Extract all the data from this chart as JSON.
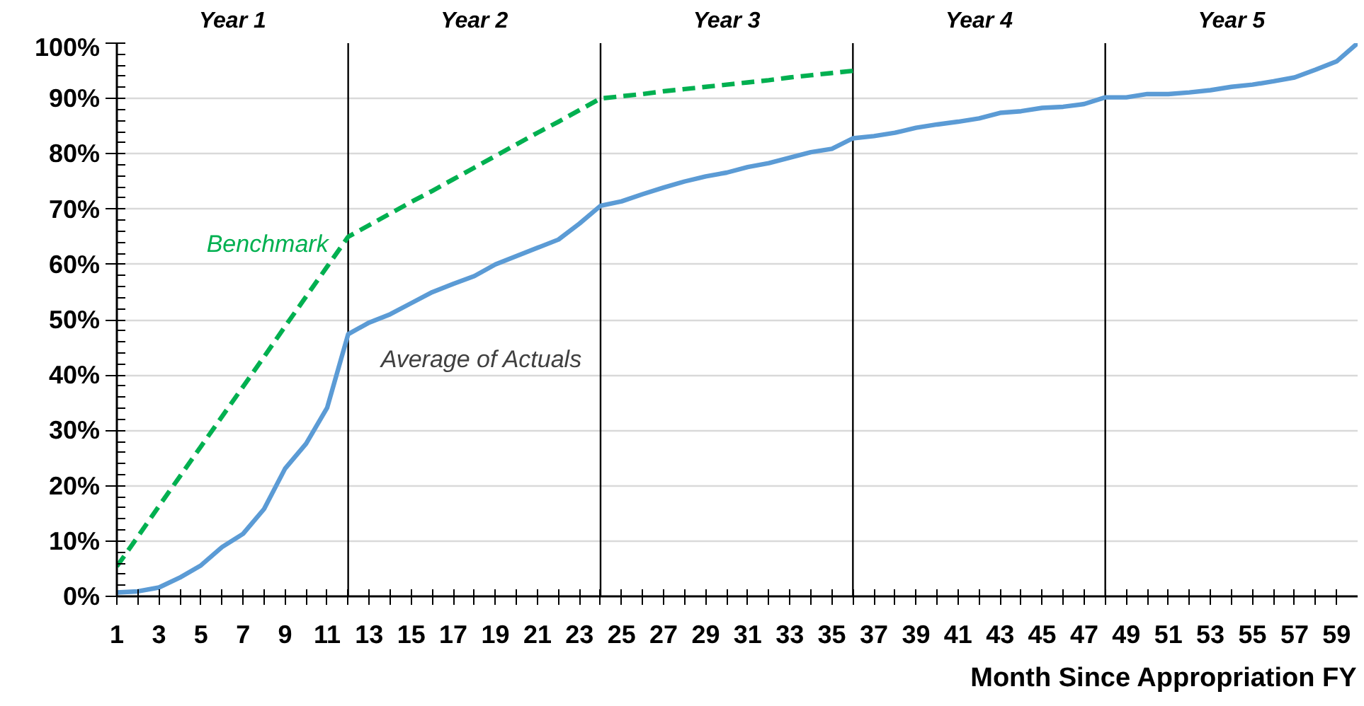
{
  "chart_data": {
    "type": "line",
    "xlabel": "Month Since Appropriation FY",
    "xlim": [
      1,
      60
    ],
    "xticks": [
      1,
      {
        "value": 2,
        "label": null
      },
      3,
      {
        "value": 4,
        "label": null
      },
      5,
      {
        "value": 6,
        "label": null
      },
      7,
      {
        "value": 8,
        "label": null
      },
      9,
      {
        "value": 10,
        "label": null
      },
      11,
      {
        "value": 12,
        "label": null
      },
      13,
      {
        "value": 14,
        "label": null
      },
      15,
      {
        "value": 16,
        "label": null
      },
      17,
      {
        "value": 18,
        "label": null
      },
      19,
      {
        "value": 20,
        "label": null
      },
      21,
      {
        "value": 22,
        "label": null
      },
      23,
      {
        "value": 24,
        "label": null
      },
      25,
      {
        "value": 26,
        "label": null
      },
      27,
      {
        "value": 28,
        "label": null
      },
      29,
      {
        "value": 30,
        "label": null
      },
      31,
      {
        "value": 32,
        "label": null
      },
      33,
      {
        "value": 34,
        "label": null
      },
      35,
      {
        "value": 36,
        "label": null
      },
      37,
      {
        "value": 38,
        "label": null
      },
      39,
      {
        "value": 40,
        "label": null
      },
      41,
      {
        "value": 42,
        "label": null
      },
      43,
      {
        "value": 44,
        "label": null
      },
      45,
      {
        "value": 46,
        "label": null
      },
      47,
      {
        "value": 48,
        "label": null
      },
      49,
      {
        "value": 50,
        "label": null
      },
      51,
      {
        "value": 52,
        "label": null
      },
      53,
      {
        "value": 54,
        "label": null
      },
      55,
      {
        "value": 56,
        "label": null
      },
      57,
      {
        "value": 58,
        "label": null
      },
      59
    ],
    "ylim": [
      0,
      100
    ],
    "yticks": [
      {
        "value": 0,
        "label": "0%"
      },
      {
        "value": 2,
        "label": null
      },
      {
        "value": 4,
        "label": null
      },
      {
        "value": 6,
        "label": null
      },
      {
        "value": 8,
        "label": null
      },
      {
        "value": 10,
        "label": "10%"
      },
      {
        "value": 12,
        "label": null
      },
      {
        "value": 14,
        "label": null
      },
      {
        "value": 16,
        "label": null
      },
      {
        "value": 18,
        "label": null
      },
      {
        "value": 20,
        "label": "20%"
      },
      {
        "value": 22,
        "label": null
      },
      {
        "value": 24,
        "label": null
      },
      {
        "value": 26,
        "label": null
      },
      {
        "value": 28,
        "label": null
      },
      {
        "value": 30,
        "label": "30%"
      },
      {
        "value": 32,
        "label": null
      },
      {
        "value": 34,
        "label": null
      },
      {
        "value": 36,
        "label": null
      },
      {
        "value": 38,
        "label": null
      },
      {
        "value": 40,
        "label": "40%"
      },
      {
        "value": 42,
        "label": null
      },
      {
        "value": 44,
        "label": null
      },
      {
        "value": 46,
        "label": null
      },
      {
        "value": 48,
        "label": null
      },
      {
        "value": 50,
        "label": "50%"
      },
      {
        "value": 52,
        "label": null
      },
      {
        "value": 54,
        "label": null
      },
      {
        "value": 56,
        "label": null
      },
      {
        "value": 58,
        "label": null
      },
      {
        "value": 60,
        "label": "60%"
      },
      {
        "value": 62,
        "label": null
      },
      {
        "value": 64,
        "label": null
      },
      {
        "value": 66,
        "label": null
      },
      {
        "value": 68,
        "label": null
      },
      {
        "value": 70,
        "label": "70%"
      },
      {
        "value": 72,
        "label": null
      },
      {
        "value": 74,
        "label": null
      },
      {
        "value": 76,
        "label": null
      },
      {
        "value": 78,
        "label": null
      },
      {
        "value": 80,
        "label": "80%"
      },
      {
        "value": 82,
        "label": null
      },
      {
        "value": 84,
        "label": null
      },
      {
        "value": 86,
        "label": null
      },
      {
        "value": 88,
        "label": null
      },
      {
        "value": 90,
        "label": "90%"
      },
      {
        "value": 92,
        "label": null
      },
      {
        "value": 94,
        "label": null
      },
      {
        "value": 96,
        "label": null
      },
      {
        "value": 98,
        "label": null
      },
      {
        "value": 100,
        "label": "100%"
      }
    ],
    "grid": "y",
    "series": [
      {
        "name": "Benchmark",
        "color": "#00b050",
        "line_style": "dashed",
        "x": [
          1,
          2,
          3,
          4,
          5,
          6,
          7,
          8,
          9,
          10,
          11,
          12,
          13,
          14,
          15,
          16,
          17,
          18,
          19,
          20,
          21,
          22,
          23,
          24,
          25,
          26,
          27,
          28,
          29,
          30,
          31,
          32,
          33,
          34,
          35,
          36
        ],
        "values": [
          5.4,
          10.8,
          16.3,
          21.7,
          27.1,
          32.5,
          37.9,
          43.3,
          48.8,
          54.2,
          59.6,
          65.0,
          67.1,
          69.2,
          71.3,
          73.3,
          75.4,
          77.5,
          79.6,
          81.7,
          83.8,
          85.8,
          87.9,
          90.0,
          90.4,
          90.8,
          91.3,
          91.7,
          92.1,
          92.5,
          92.9,
          93.3,
          93.8,
          94.2,
          94.6,
          95.0
        ]
      },
      {
        "name": "Average of Actuals",
        "color": "#5b9bd5",
        "line_style": "solid",
        "x": [
          1,
          2,
          3,
          4,
          5,
          6,
          7,
          8,
          9,
          10,
          11,
          12,
          13,
          14,
          15,
          16,
          17,
          18,
          19,
          20,
          21,
          22,
          23,
          24,
          25,
          26,
          27,
          28,
          29,
          30,
          31,
          32,
          33,
          34,
          35,
          36,
          37,
          38,
          39,
          40,
          41,
          42,
          43,
          44,
          45,
          46,
          47,
          48,
          49,
          50,
          51,
          52,
          53,
          54,
          55,
          56,
          57,
          58,
          59,
          60
        ],
        "values": [
          0.7,
          0.9,
          1.6,
          3.4,
          5.6,
          8.9,
          11.3,
          15.8,
          23.1,
          27.6,
          34.1,
          47.4,
          49.5,
          51.0,
          53.0,
          55.0,
          56.5,
          57.9,
          60.0,
          61.5,
          63.0,
          64.5,
          67.4,
          70.6,
          71.4,
          72.7,
          73.9,
          75.0,
          75.9,
          76.6,
          77.6,
          78.3,
          79.3,
          80.3,
          80.9,
          82.8,
          83.2,
          83.8,
          84.7,
          85.3,
          85.8,
          86.4,
          87.4,
          87.7,
          88.3,
          88.5,
          89.0,
          90.2,
          90.2,
          90.8,
          90.8,
          91.1,
          91.5,
          92.1,
          92.5,
          93.1,
          93.8,
          95.2,
          96.7,
          100.0
        ]
      }
    ],
    "ref_lines": [
      {
        "axis": "x",
        "value": 12,
        "color": "#000000"
      },
      {
        "axis": "x",
        "value": 24,
        "color": "#000000"
      },
      {
        "axis": "x",
        "value": 36,
        "color": "#000000"
      },
      {
        "axis": "x",
        "value": 48,
        "color": "#000000"
      }
    ],
    "annotations": [
      "Year 1",
      "Year 2",
      "Year 3",
      "Year 4",
      "Year 5"
    ]
  }
}
